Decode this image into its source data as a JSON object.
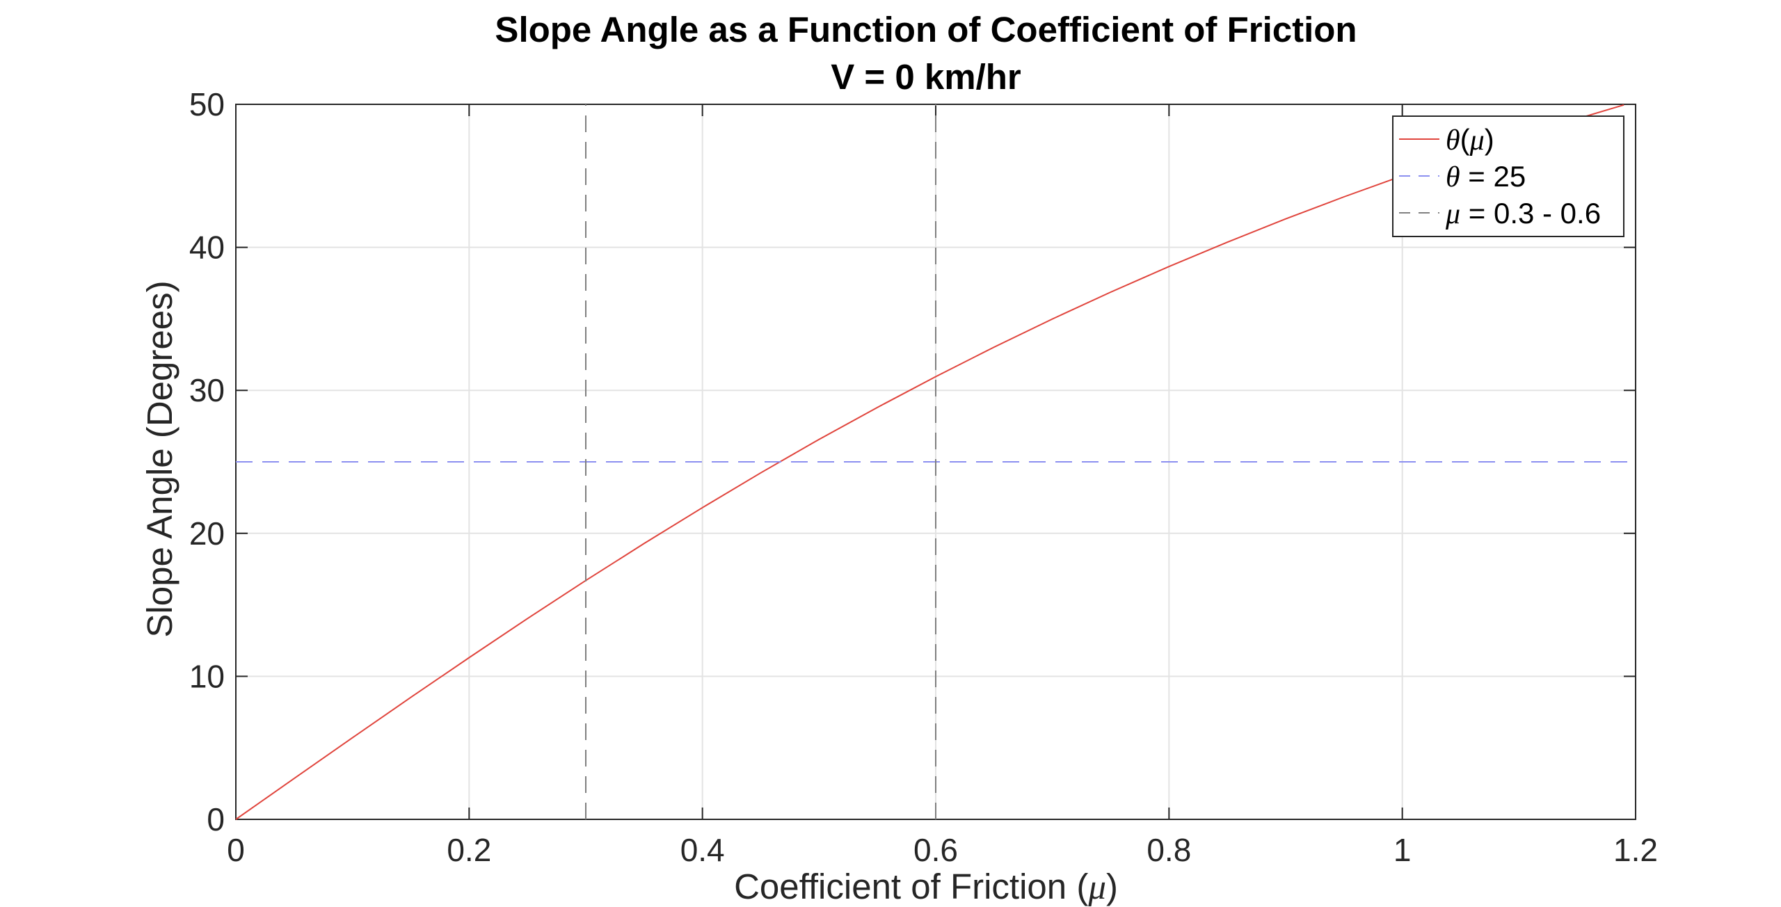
{
  "chart_data": {
    "type": "line",
    "title": "Slope Angle as a Function of Coefficient of Friction",
    "subtitle": "V = 0 km/hr",
    "xlabel": {
      "prefix": "Coefficient of Friction (",
      "symbol": "μ",
      "suffix": ")"
    },
    "ylabel": "Slope Angle (Degrees)",
    "xlim": [
      0,
      1.2
    ],
    "ylim": [
      0,
      50
    ],
    "xticks": [
      0,
      0.2,
      0.4,
      0.6,
      0.8,
      1,
      1.2
    ],
    "xtick_labels": [
      "0",
      "0.2",
      "0.4",
      "0.6",
      "0.8",
      "1",
      "1.2"
    ],
    "yticks": [
      0,
      10,
      20,
      30,
      40,
      50
    ],
    "ytick_labels": [
      "0",
      "10",
      "20",
      "30",
      "40",
      "50"
    ],
    "grid": true,
    "legend_position": "top-right",
    "series": [
      {
        "name": "θ(μ)",
        "style": "solid",
        "color": "#e0443c",
        "x": [
          0,
          0.05,
          0.1,
          0.15,
          0.2,
          0.25,
          0.3,
          0.35,
          0.4,
          0.45,
          0.5,
          0.55,
          0.6,
          0.65,
          0.7,
          0.75,
          0.8,
          0.85,
          0.9,
          0.95,
          1.0,
          1.05,
          1.1,
          1.15,
          1.19
        ],
        "y": [
          0,
          2.86,
          5.71,
          8.53,
          11.31,
          14.04,
          16.7,
          19.29,
          21.8,
          24.23,
          26.57,
          28.81,
          30.96,
          33.02,
          34.99,
          36.87,
          38.66,
          40.36,
          41.99,
          43.53,
          45.0,
          46.4,
          47.73,
          48.99,
          49.96
        ]
      },
      {
        "name": "θ = 25",
        "style": "dashed",
        "color": "#8b8ff0",
        "x": [
          0,
          1.2
        ],
        "y": [
          25,
          25
        ]
      },
      {
        "name": "μ = 0.3 - 0.6",
        "style": "dashed",
        "color": "#7f7f7f",
        "vertical_x": [
          0.3,
          0.6
        ],
        "y": [
          0,
          50
        ]
      }
    ],
    "legend": [
      {
        "series": 0,
        "symbol": "θ",
        "open": "(",
        "symbol2": "μ",
        "close": ")",
        "tail": ""
      },
      {
        "series": 1,
        "symbol": "θ",
        "open": "",
        "symbol2": "",
        "close": "",
        "tail": " = 25"
      },
      {
        "series": 2,
        "symbol": "μ",
        "open": "",
        "symbol2": "",
        "close": "",
        "tail": " = 0.3 - 0.6"
      }
    ]
  }
}
